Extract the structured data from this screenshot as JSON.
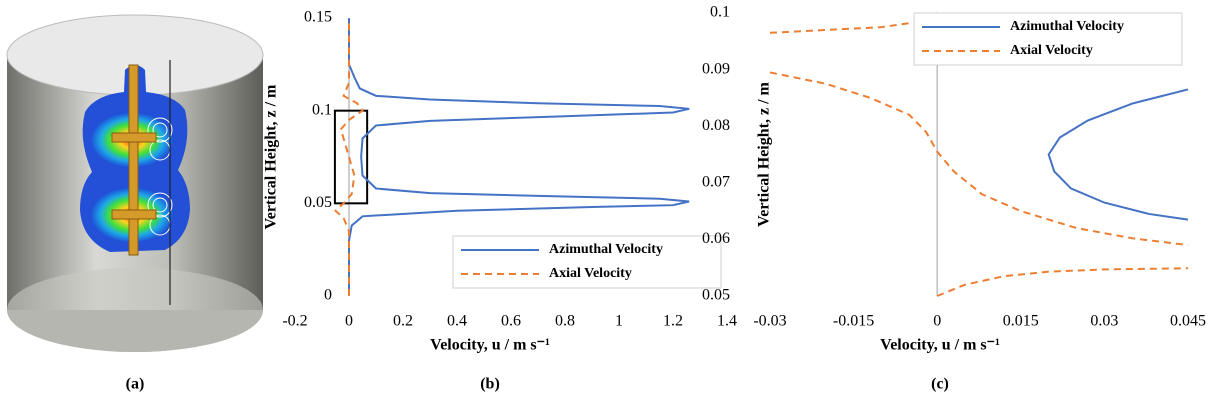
{
  "figure": {
    "label": "(a)"
  },
  "chart_data": [
    {
      "type": "line",
      "panel_label": "(b)",
      "xlabel": "Velocity, u / m s⁻¹",
      "ylabel": "Vertical Height, z / m",
      "xlim": [
        -0.2,
        1.4
      ],
      "ylim": [
        0,
        0.15
      ],
      "xticks": [
        -0.2,
        0,
        0.2,
        0.4,
        0.6,
        0.8,
        1,
        1.2,
        1.4
      ],
      "yticks": [
        0,
        0.05,
        0.1,
        0.15
      ],
      "legend": "lower right",
      "series": [
        {
          "name": "Azimuthal Velocity",
          "color": "#4472c4",
          "linestyle": "solid",
          "x": [
            0,
            0,
            0.01,
            0.05,
            0.4,
            0.9,
            1.2,
            1.26,
            1.15,
            0.7,
            0.3,
            0.1,
            0.05,
            0.045,
            0.05,
            0.1,
            0.3,
            0.8,
            1.2,
            1.26,
            1.15,
            0.7,
            0.3,
            0.1,
            0.04,
            0.02,
            0,
            0
          ],
          "y": [
            0,
            0.03,
            0.038,
            0.043,
            0.046,
            0.048,
            0.049,
            0.051,
            0.0525,
            0.054,
            0.0555,
            0.058,
            0.065,
            0.075,
            0.085,
            0.092,
            0.0945,
            0.097,
            0.099,
            0.101,
            0.1025,
            0.104,
            0.106,
            0.108,
            0.112,
            0.118,
            0.125,
            0.15
          ]
        },
        {
          "name": "Axial Velocity",
          "color": "#ed7d31",
          "linestyle": "dashed",
          "x": [
            0,
            0,
            -0.02,
            -0.05,
            -0.02,
            0.01,
            0.02,
            0,
            -0.02,
            -0.03,
            0,
            0.05,
            0.03,
            -0.02,
            0,
            0
          ],
          "y": [
            0,
            0.035,
            0.042,
            0.046,
            0.05,
            0.055,
            0.065,
            0.075,
            0.085,
            0.09,
            0.095,
            0.1,
            0.104,
            0.108,
            0.115,
            0.15
          ]
        }
      ]
    },
    {
      "type": "line",
      "panel_label": "(c)",
      "xlabel": "Velocity, u / m s⁻¹",
      "ylabel": "Vertical Height, z / m",
      "xlim": [
        -0.03,
        0.045
      ],
      "ylim": [
        0.05,
        0.1
      ],
      "xticks": [
        -0.03,
        -0.015,
        0,
        0.015,
        0.03,
        0.045
      ],
      "yticks": [
        0.05,
        0.06,
        0.07,
        0.08,
        0.09,
        0.1
      ],
      "legend": "upper right",
      "series": [
        {
          "name": "Azimuthal Velocity",
          "color": "#4472c4",
          "linestyle": "solid",
          "x": [
            0.045,
            0.035,
            0.027,
            0.022,
            0.02,
            0.021,
            0.024,
            0.03,
            0.038,
            0.045
          ],
          "y": [
            0.0865,
            0.084,
            0.081,
            0.078,
            0.075,
            0.072,
            0.069,
            0.0665,
            0.0645,
            0.0635
          ]
        },
        {
          "name": "Axial Velocity",
          "color": "#ed7d31",
          "linestyle": "dashed",
          "x": [
            -0.03,
            -0.02,
            -0.01,
            -0.003,
            0,
            null,
            -0.03,
            -0.02,
            -0.012,
            -0.005,
            -0.002,
            0,
            0.003,
            0.008,
            0.015,
            0.025,
            0.035,
            0.045,
            null,
            0,
            0.005,
            0.012,
            0.02,
            0.03,
            0.045
          ],
          "y": [
            0.0965,
            0.097,
            0.0975,
            0.0985,
            0.1,
            null,
            0.0895,
            0.0875,
            0.085,
            0.082,
            0.079,
            0.0755,
            0.072,
            0.068,
            0.065,
            0.062,
            0.0602,
            0.059,
            null,
            0.05,
            0.052,
            0.0535,
            0.0543,
            0.0547,
            0.0549
          ]
        }
      ]
    }
  ]
}
